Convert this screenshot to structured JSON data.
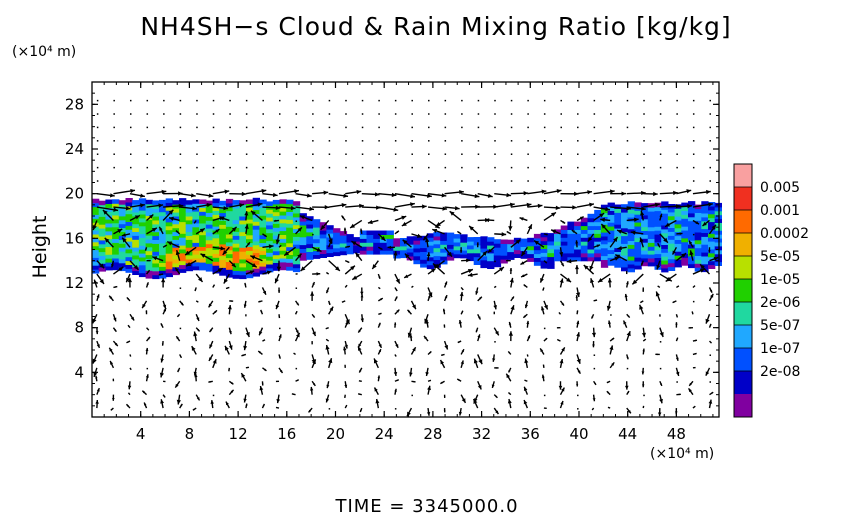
{
  "chart_data": {
    "type": "heatmap",
    "title": "NH4SH−s Cloud & Rain Mixing Ratio [kg/kg]",
    "xlabel": "",
    "x_unit": "(×10⁴ m)",
    "ylabel": "Height",
    "y_unit": "(×10⁴ m)",
    "footer": "TIME = 3345000.0",
    "xlim": [
      0,
      51.5
    ],
    "ylim": [
      0,
      30
    ],
    "x_ticks": [
      "4",
      "8",
      "12",
      "16",
      "20",
      "24",
      "28",
      "32",
      "36",
      "40",
      "44",
      "48"
    ],
    "y_ticks": [
      "4",
      "8",
      "12",
      "16",
      "20",
      "24",
      "28"
    ],
    "colorbar": {
      "labels": [
        "0.005",
        "0.001",
        "0.0002",
        "5e-05",
        "1e-05",
        "2e-06",
        "5e-07",
        "1e-07",
        "2e-08"
      ],
      "colors": [
        "#f9a0a0",
        "#f03020",
        "#ff6a00",
        "#f0b000",
        "#b8e000",
        "#20d000",
        "#20d8a0",
        "#20a8ff",
        "#0050ff",
        "#0000c8",
        "#8000a0"
      ]
    },
    "cloud_layer": {
      "x_range": [
        0,
        51.5
      ],
      "base_height_approx": 12.5,
      "top_height_approx": 19.5,
      "peak_region": {
        "x": [
          6,
          14
        ],
        "y": [
          13,
          15
        ],
        "value": "0.0002"
      }
    },
    "vectors": "wind arrows on regular grid"
  }
}
